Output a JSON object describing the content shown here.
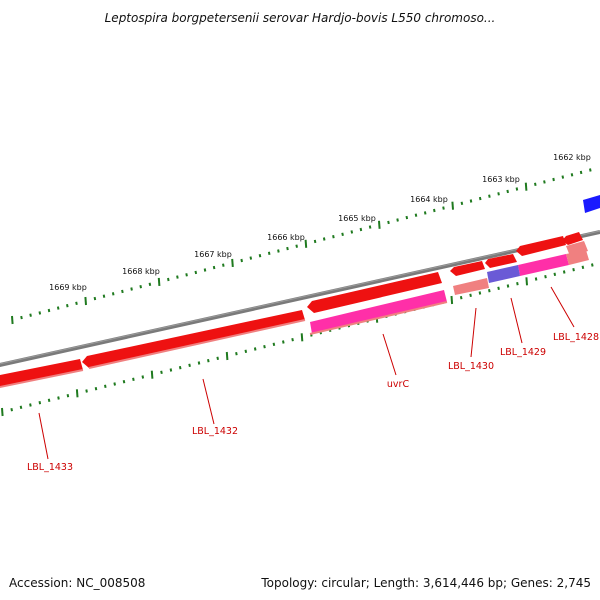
{
  "title": "Leptospira borgpetersenii serovar Hardjo-bovis L550 chromoso...",
  "footer": {
    "accession": "Accession: NC_008508",
    "summary": "Topology: circular; Length: 3,614,446 bp; Genes: 2,745"
  },
  "colors": {
    "backbone": "#7a7a7a",
    "tick": "#1f7a1f",
    "gene_red": "#ee1111",
    "gene_pink": "#ff2fa8",
    "gene_blue": "#1a1aff",
    "gene_purple": "#6a5ad6",
    "gene_light": "#f08080",
    "label": "#cc0000"
  },
  "scale_labels": [
    "1662 kbp",
    "1663 kbp",
    "1664 kbp",
    "1665 kbp",
    "1666 kbp",
    "1667 kbp",
    "1668 kbp",
    "1669 kbp"
  ],
  "gene_labels": [
    "LBL_1428",
    "LBL_1429",
    "LBL_1430",
    "uvrC",
    "LBL_1432",
    "LBL_1433"
  ]
}
